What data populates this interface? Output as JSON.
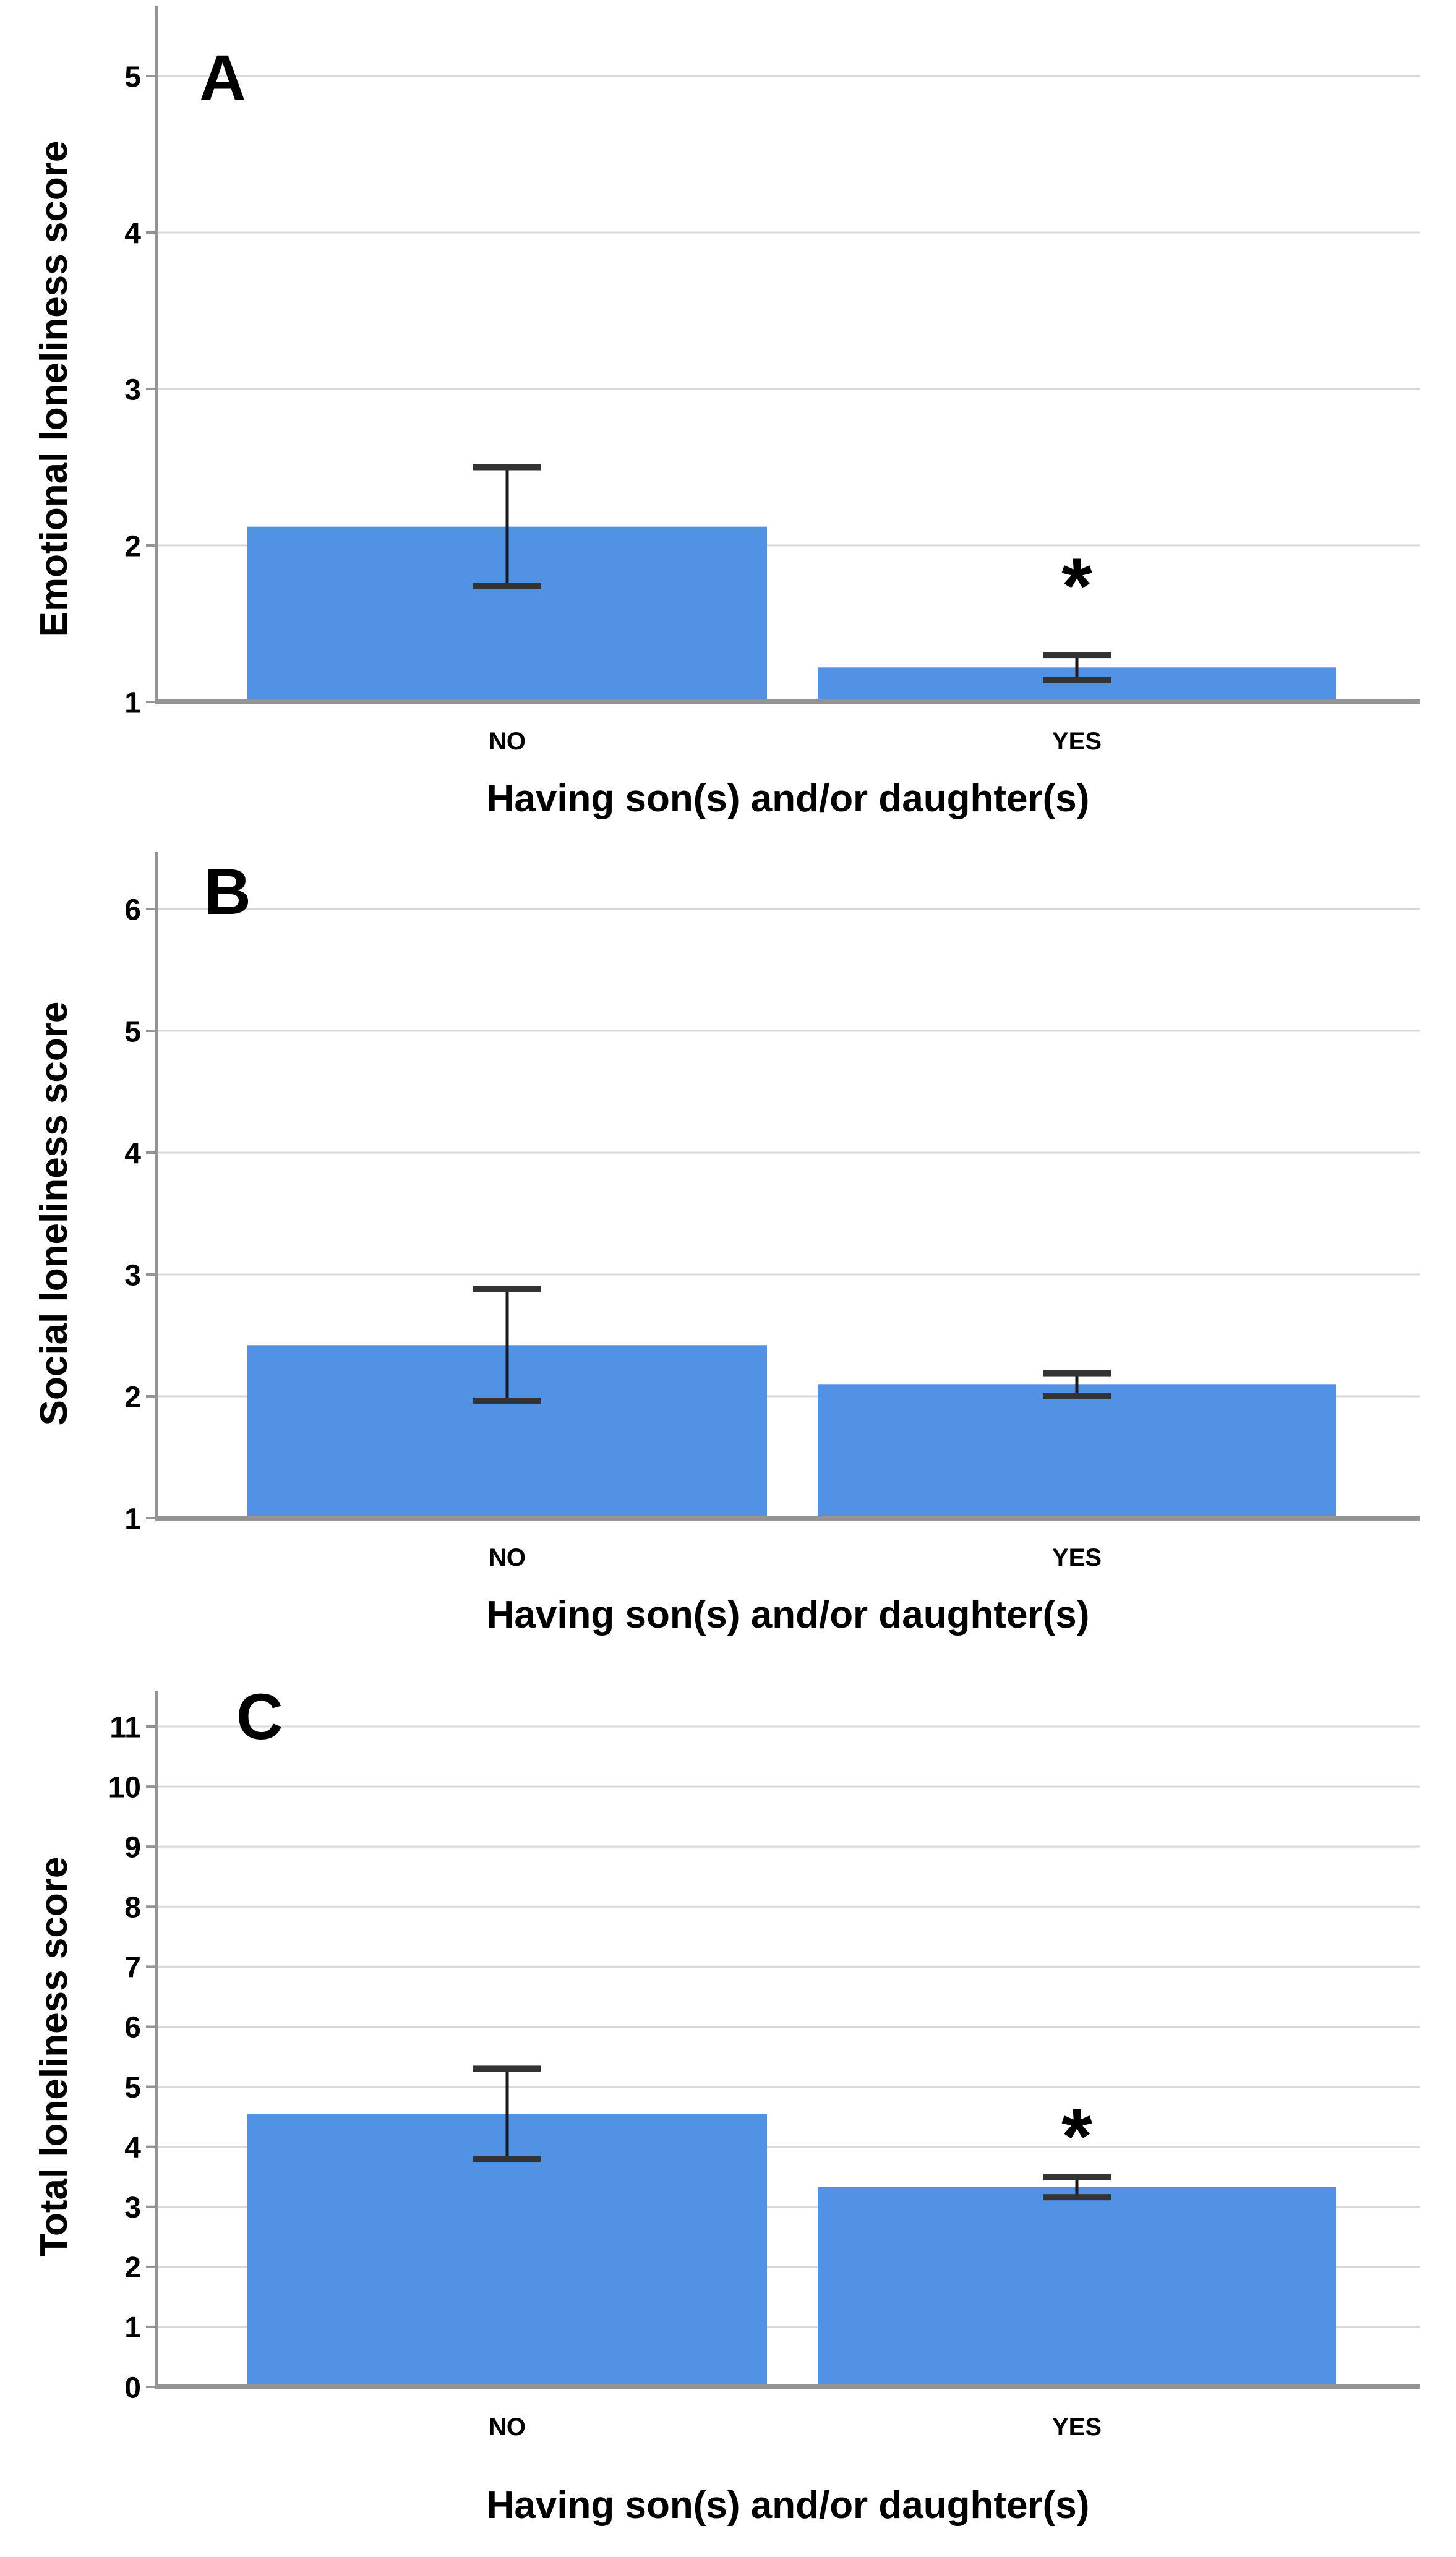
{
  "figure": {
    "xlabel": "Having son(s) and/or daughter(s)",
    "categories": [
      "NO",
      "YES"
    ]
  },
  "colors": {
    "bar": "#5292E4",
    "grid": "#d9d9d9",
    "axis": "#949494",
    "error_line": "#1a1a1a",
    "error_cap": "#333333",
    "text": "#000000",
    "background": "#ffffff"
  },
  "chart_data": [
    {
      "type": "bar",
      "panel_letter": "A",
      "title": "",
      "ylabel": "Emotional loneliness score",
      "xlabel": "Having son(s) and/or daughter(s)",
      "categories": [
        "NO",
        "YES"
      ],
      "values": [
        2.12,
        1.22
      ],
      "error_low": [
        1.74,
        1.14
      ],
      "error_high": [
        2.5,
        1.3
      ],
      "ylim": [
        1,
        5
      ],
      "yticks": [
        1,
        2,
        3,
        4,
        5
      ],
      "grid": true,
      "legend": null,
      "significance": {
        "category": "YES",
        "label": "*",
        "y": 1.82
      }
    },
    {
      "type": "bar",
      "panel_letter": "B",
      "title": "",
      "ylabel": "Social loneliness score",
      "xlabel": "Having son(s) and/or daughter(s)",
      "categories": [
        "NO",
        "YES"
      ],
      "values": [
        2.42,
        2.1
      ],
      "error_low": [
        1.96,
        2.0
      ],
      "error_high": [
        2.88,
        2.19
      ],
      "ylim": [
        1,
        6
      ],
      "yticks": [
        1,
        2,
        3,
        4,
        5,
        6
      ],
      "grid": true,
      "legend": null,
      "significance": null
    },
    {
      "type": "bar",
      "panel_letter": "C",
      "title": "",
      "ylabel": "Total loneliness score",
      "xlabel": "Having son(s) and/or daughter(s)",
      "categories": [
        "NO",
        "YES"
      ],
      "values": [
        4.55,
        3.33
      ],
      "error_low": [
        3.79,
        3.16
      ],
      "error_high": [
        5.3,
        3.5
      ],
      "ylim": [
        0,
        11
      ],
      "yticks": [
        0,
        1,
        2,
        3,
        4,
        5,
        6,
        7,
        8,
        9,
        10,
        11
      ],
      "grid": true,
      "legend": null,
      "significance": {
        "category": "YES",
        "label": "*",
        "y": 4.38
      }
    }
  ]
}
